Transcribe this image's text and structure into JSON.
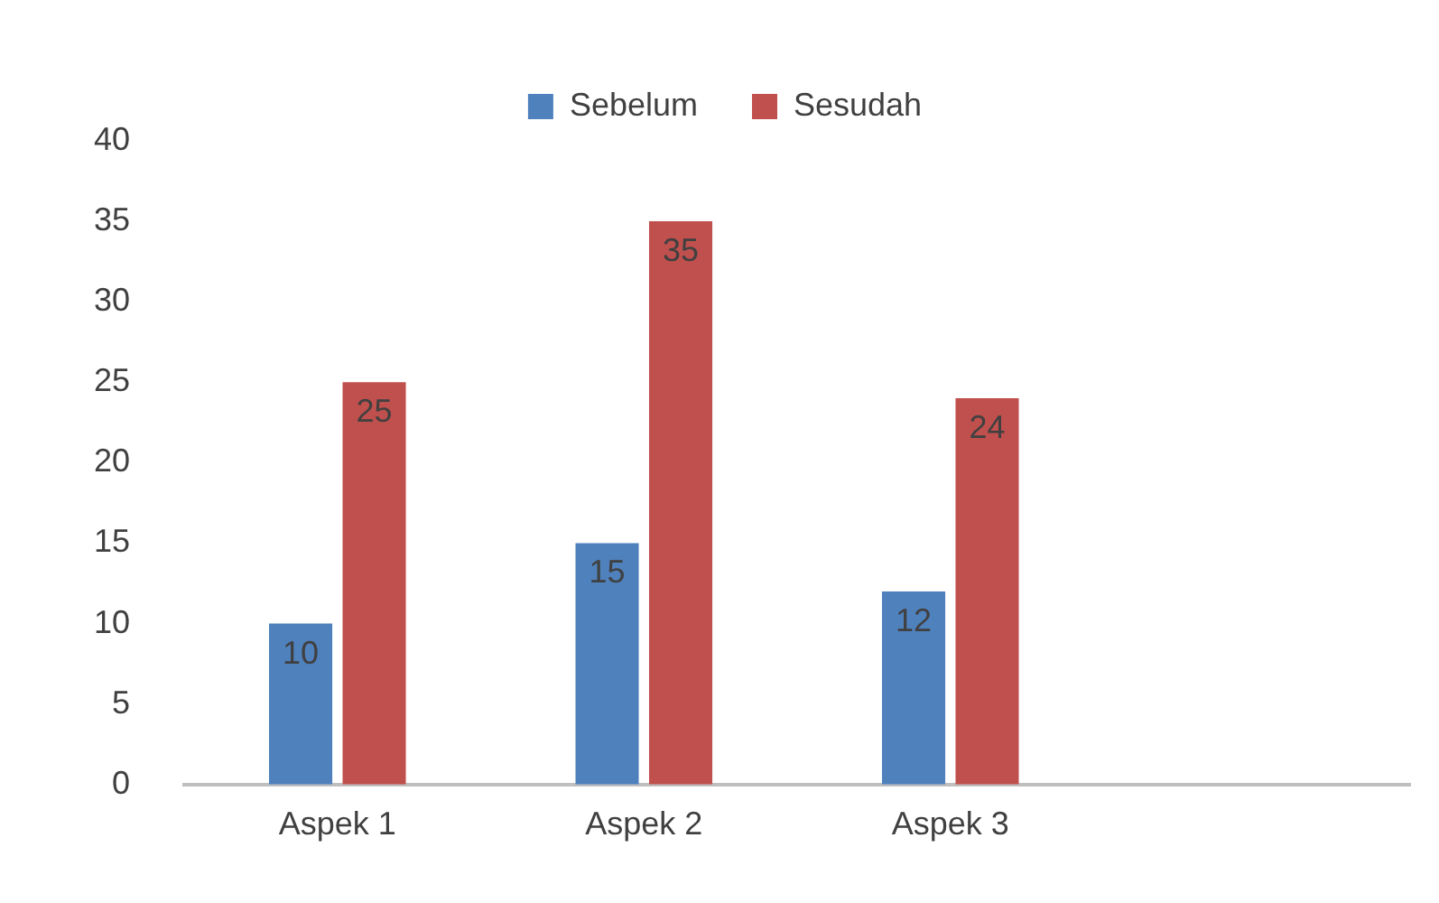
{
  "chart_data": {
    "type": "bar",
    "categories": [
      "Aspek 1",
      "Aspek 2",
      "Aspek 3",
      null
    ],
    "series": [
      {
        "name": "Sebelum",
        "color": "#4f81bd",
        "values": [
          10,
          15,
          12,
          null
        ]
      },
      {
        "name": "Sesudah",
        "color": "#c0504d",
        "values": [
          25,
          35,
          24,
          null
        ]
      }
    ],
    "ylim": [
      0,
      40
    ],
    "yticks": [
      0,
      5,
      10,
      15,
      20,
      25,
      30,
      35,
      40
    ],
    "grid": false,
    "legend": "top",
    "data_labels": true
  }
}
